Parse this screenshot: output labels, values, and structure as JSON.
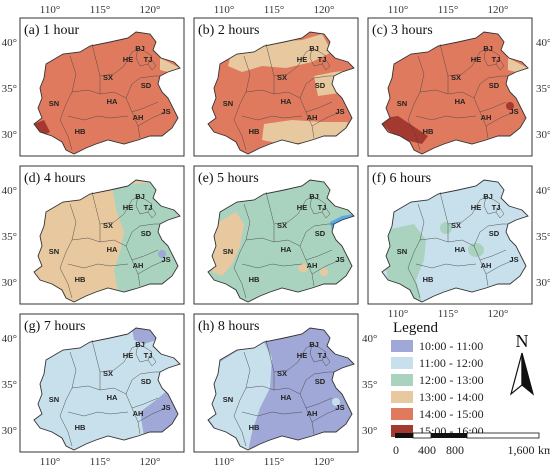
{
  "axis_ticks": {
    "lon": [
      "110°",
      "115°",
      "120°"
    ],
    "lat": [
      "40°",
      "35°",
      "30°"
    ]
  },
  "province_labels": [
    "BJ",
    "TJ",
    "HE",
    "SX",
    "SD",
    "SN",
    "HA",
    "HB",
    "AH",
    "JS"
  ],
  "panels": [
    {
      "label": "(a) 1 hour",
      "base": "#e07a5f",
      "patches": [
        {
          "cls": "15-16",
          "where": "sw-tip"
        },
        {
          "cls": "13-14",
          "where": "ne-corner"
        }
      ]
    },
    {
      "label": "(b) 2 hours",
      "base": "#e07a5f",
      "patches": [
        {
          "cls": "13-14",
          "where": "north-belt"
        },
        {
          "cls": "13-14",
          "where": "east-belt"
        },
        {
          "cls": "13-14",
          "where": "south-belt"
        },
        {
          "cls": "14-15",
          "where": "center-spots"
        }
      ]
    },
    {
      "label": "(c) 3 hours",
      "base": "#e07a5f",
      "patches": [
        {
          "cls": "15-16",
          "where": "sw-wedge"
        },
        {
          "cls": "13-14",
          "where": "ne-corner"
        },
        {
          "cls": "15-16",
          "where": "east-spot"
        }
      ]
    },
    {
      "label": "(d) 4 hours",
      "base": "#e8c99f",
      "patches": [
        {
          "cls": "12-13",
          "where": "east-half"
        },
        {
          "cls": "10-11",
          "where": "east-spot"
        }
      ]
    },
    {
      "label": "(e) 5 hours",
      "base": "#a9d3bf",
      "patches": [
        {
          "cls": "13-14",
          "where": "west-strip"
        },
        {
          "cls": "11-12",
          "where": "peninsula"
        },
        {
          "cls": "13-14",
          "where": "south-spots"
        }
      ]
    },
    {
      "label": "(f) 6 hours",
      "base": "#c7e0ec",
      "patches": [
        {
          "cls": "12-13",
          "where": "west-sw"
        },
        {
          "cls": "12-13",
          "where": "center-spots"
        }
      ]
    },
    {
      "label": "(g) 7 hours",
      "base": "#c7e0ec",
      "patches": [
        {
          "cls": "10-11",
          "where": "north-tip"
        },
        {
          "cls": "10-11",
          "where": "southeast"
        }
      ]
    },
    {
      "label": "(h) 8 hours",
      "base": "#9fa8d6",
      "patches": [
        {
          "cls": "11-12",
          "where": "west-half"
        },
        {
          "cls": "11-12",
          "where": "east-spot"
        }
      ]
    }
  ],
  "legend": {
    "title": "Legend",
    "items": [
      {
        "label": "10:00 - 11:00",
        "color": "#9fa8d6"
      },
      {
        "label": "11:00 - 12:00",
        "color": "#c7e0ec"
      },
      {
        "label": "12:00 - 13:00",
        "color": "#a9d3bf"
      },
      {
        "label": "13:00 - 14:00",
        "color": "#e8c99f"
      },
      {
        "label": "14:00 - 15:00",
        "color": "#e07a5f"
      },
      {
        "label": "15:00 - 16:00",
        "color": "#a3392f"
      }
    ]
  },
  "north_arrow": {
    "letter": "N",
    "icon": "north-arrow-icon"
  },
  "scale_bar": {
    "labels": [
      "0",
      "400",
      "800",
      "1,600"
    ],
    "unit": "km"
  },
  "colors": {
    "10-11": "#9fa8d6",
    "11-12": "#c7e0ec",
    "12-13": "#a9d3bf",
    "13-14": "#e8c99f",
    "14-15": "#e07a5f",
    "15-16": "#a3392f",
    "peninsula-blue": "#5aa9e6"
  }
}
